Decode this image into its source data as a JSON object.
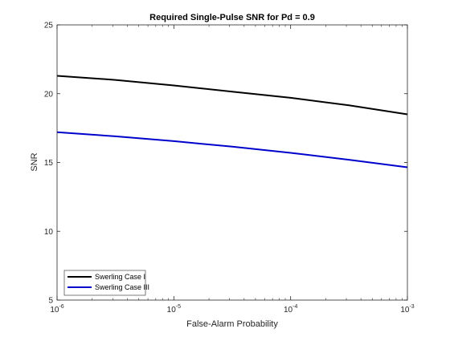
{
  "chart_data": {
    "type": "line",
    "title": "Required Single-Pulse SNR for Pd = 0.9",
    "xlabel": "False-Alarm Probability",
    "ylabel": "SNR",
    "xscale": "log",
    "xlim": [
      1e-06,
      0.001
    ],
    "ylim": [
      5,
      25
    ],
    "xticks": [
      {
        "value": 1e-06,
        "base": "10",
        "exp": "-6"
      },
      {
        "value": 1e-05,
        "base": "10",
        "exp": "-5"
      },
      {
        "value": 0.0001,
        "base": "10",
        "exp": "-4"
      },
      {
        "value": 0.001,
        "base": "10",
        "exp": "-3"
      }
    ],
    "yticks": [
      5,
      10,
      15,
      20,
      25
    ],
    "grid": false,
    "legend_position": "bottom-left",
    "series": [
      {
        "name": "Swerling Case I",
        "color": "#000000",
        "x": [
          1e-06,
          3.16e-06,
          1e-05,
          3.16e-05,
          0.0001,
          0.000316,
          0.001
        ],
        "y": [
          21.3,
          21.0,
          20.6,
          20.15,
          19.7,
          19.15,
          18.5
        ]
      },
      {
        "name": "Swerling Case III",
        "color": "#0000cc",
        "x": [
          1e-06,
          3.16e-06,
          1e-05,
          3.16e-05,
          0.0001,
          0.000316,
          0.001
        ],
        "y": [
          17.2,
          16.9,
          16.55,
          16.15,
          15.7,
          15.2,
          14.65
        ]
      }
    ]
  }
}
